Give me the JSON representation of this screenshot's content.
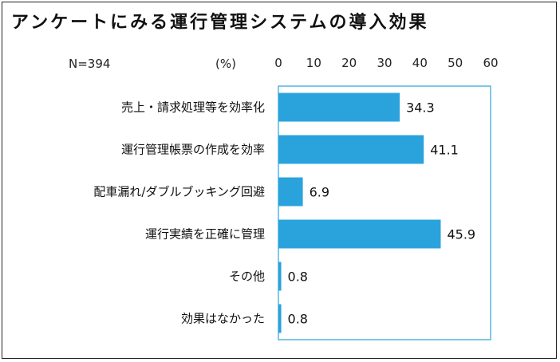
{
  "title": "アンケートにみる運行管理システムの導入効果",
  "sample_size_label": "N=394",
  "unit_label": "(%)",
  "colors": {
    "bar": "#2aa3dc",
    "axis_box": "#2aa3dc",
    "text": "#1a1a1a"
  },
  "chart_data": {
    "type": "bar",
    "orientation": "horizontal",
    "title": "アンケートにみる運行管理システムの導入効果",
    "xlabel": "(%)",
    "ylabel": "",
    "xlim": [
      0,
      60
    ],
    "ticks": [
      0,
      10,
      20,
      30,
      40,
      50,
      60
    ],
    "tick_position": "top",
    "grid": false,
    "categories": [
      "売上・請求処理等を効率化",
      "運行管理帳票の作成を効率",
      "配車漏れ/ダブルブッキング回避",
      "運行実績を正確に管理",
      "その他",
      "効果はなかった"
    ],
    "values": [
      34.3,
      41.1,
      6.9,
      45.9,
      0.8,
      0.8
    ],
    "value_labels": [
      "34.3",
      "41.1",
      "6.9",
      "45.9",
      "0.8",
      "0.8"
    ]
  }
}
